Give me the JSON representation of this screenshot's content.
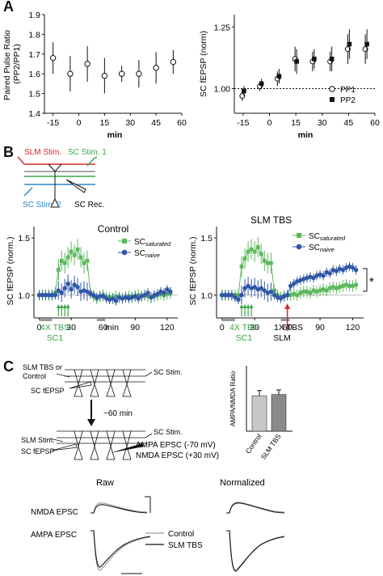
{
  "panels": {
    "a": {
      "letter": "A"
    },
    "b": {
      "letter": "B"
    },
    "c": {
      "letter": "C"
    }
  },
  "chart_data": [
    {
      "id": "ppr",
      "type": "scatter",
      "xlabel": "min",
      "ylabel_line1": "Paired Pulse Ratio",
      "ylabel_line2": "(PP2/PP1)",
      "xlim": [
        -20,
        60
      ],
      "ylim": [
        1.4,
        1.9
      ],
      "xticks": [
        "-15",
        "0",
        "15",
        "30",
        "45",
        "60"
      ],
      "yticks": [
        "1.4",
        "1.5",
        "1.6",
        "1.7",
        "1.8",
        "1.9"
      ],
      "x": [
        -15,
        -5,
        5,
        15,
        25,
        35,
        45,
        55
      ],
      "y": [
        1.68,
        1.6,
        1.65,
        1.59,
        1.6,
        1.6,
        1.63,
        1.66
      ],
      "err": [
        0.08,
        0.09,
        0.09,
        0.09,
        0.04,
        0.07,
        0.08,
        0.06
      ]
    },
    {
      "id": "fepsp",
      "type": "scatter",
      "xlabel": "min",
      "ylabel": "SC fEPSP (norm)",
      "xlim": [
        -20,
        60
      ],
      "ylim": [
        0.9,
        1.3
      ],
      "xticks": [
        "-15",
        "0",
        "15",
        "30",
        "45",
        "60"
      ],
      "yticks": [
        "1.00",
        "1.25"
      ],
      "series": [
        {
          "name": "PP1",
          "x": [
            -15,
            -5,
            5,
            15,
            25,
            35,
            45,
            55
          ],
          "y": [
            0.97,
            1.01,
            1.04,
            1.12,
            1.11,
            1.11,
            1.16,
            1.16
          ],
          "err": [
            0.02,
            0.02,
            0.03,
            0.05,
            0.04,
            0.04,
            0.06,
            0.06
          ]
        },
        {
          "name": "PP2",
          "x": [
            -15,
            -5,
            5,
            15,
            25,
            35,
            45,
            55
          ],
          "y": [
            0.99,
            1.02,
            1.05,
            1.11,
            1.12,
            1.12,
            1.18,
            1.18
          ],
          "err": [
            0.02,
            0.02,
            0.03,
            0.05,
            0.04,
            0.05,
            0.06,
            0.06
          ]
        }
      ]
    },
    {
      "id": "control",
      "type": "line",
      "title": "Control",
      "ylabel": "SC fEPSP (norm.)",
      "xlabel": "min",
      "xlim": [
        -5,
        130
      ],
      "ylim": [
        0.8,
        1.6
      ],
      "xticks": [
        "0",
        "30",
        "60",
        "90",
        "120"
      ],
      "yticks": [
        "1.0",
        "1.5"
      ],
      "series": [
        {
          "name": "SC saturated",
          "x": [
            0,
            3,
            6,
            9,
            12,
            15,
            18,
            21,
            24,
            27,
            30,
            33,
            36,
            39,
            42,
            45,
            48,
            51,
            54,
            57,
            60,
            63,
            66,
            69,
            72,
            75,
            78,
            81,
            84,
            87,
            90,
            93,
            96,
            99,
            102,
            105,
            108,
            111,
            114,
            117,
            120,
            123
          ],
          "y": [
            1.0,
            1.0,
            1.0,
            1.0,
            1.0,
            1.02,
            1.22,
            1.3,
            1.28,
            1.33,
            1.38,
            1.35,
            1.4,
            1.33,
            1.28,
            1.3,
            1.02,
            0.99,
            0.97,
            0.99,
            1.0,
            0.98,
            0.98,
            0.97,
            0.99,
            0.98,
            0.97,
            0.98,
            0.99,
            0.98,
            0.99,
            1.0,
            0.99,
            1.0,
            0.99,
            0.98,
            0.99,
            1.0,
            1.01,
            1.0,
            1.01,
            1.02
          ]
        },
        {
          "name": "SC naive",
          "x": [
            0,
            3,
            6,
            9,
            12,
            15,
            18,
            21,
            24,
            27,
            30,
            33,
            36,
            39,
            42,
            45,
            48,
            51,
            54,
            57,
            60,
            63,
            66,
            69,
            72,
            75,
            78,
            81,
            84,
            87,
            90,
            93,
            96,
            99,
            102,
            105,
            108,
            111,
            114,
            117,
            120,
            123
          ],
          "y": [
            1.0,
            1.0,
            1.0,
            1.0,
            1.0,
            1.0,
            1.04,
            1.02,
            1.06,
            1.1,
            1.05,
            1.09,
            1.07,
            1.03,
            1.04,
            1.03,
            1.01,
            1.0,
            0.98,
            0.99,
            0.99,
            0.97,
            0.96,
            0.97,
            0.95,
            0.98,
            0.97,
            0.98,
            0.97,
            0.98,
            0.99,
            0.97,
            0.99,
            1.0,
            1.02,
            0.98,
            1.0,
            1.01,
            1.03,
            1.02,
            1.05,
            1.03
          ]
        }
      ],
      "stim_label_line1": "4X TBS",
      "stim_label_line2": "SC1"
    },
    {
      "id": "slm",
      "type": "line",
      "title": "SLM TBS",
      "ylabel": "SC fEPSP (norm.)",
      "xlabel": "min",
      "xlim": [
        -5,
        130
      ],
      "ylim": [
        0.8,
        1.6
      ],
      "xticks": [
        "0",
        "30",
        "60",
        "90",
        "120"
      ],
      "yticks": [
        "1.0",
        "1.5"
      ],
      "series": [
        {
          "name": "SC saturated",
          "x": [
            0,
            3,
            6,
            9,
            12,
            15,
            18,
            21,
            24,
            27,
            30,
            33,
            36,
            39,
            42,
            45,
            48,
            51,
            54,
            57,
            60,
            63,
            66,
            69,
            72,
            75,
            78,
            81,
            84,
            87,
            90,
            93,
            96,
            99,
            102,
            105,
            108,
            111,
            114,
            117,
            120,
            123
          ],
          "y": [
            1.0,
            1.0,
            1.0,
            1.0,
            1.0,
            1.0,
            1.25,
            1.32,
            1.38,
            1.4,
            1.38,
            1.42,
            1.36,
            1.3,
            1.28,
            1.28,
            1.04,
            1.0,
            0.98,
            0.99,
            1.0,
            1.0,
            1.01,
            1.0,
            1.02,
            1.03,
            1.03,
            1.02,
            1.04,
            1.03,
            1.04,
            1.05,
            1.04,
            1.06,
            1.07,
            1.06,
            1.07,
            1.08,
            1.09,
            1.08,
            1.08,
            1.09
          ]
        },
        {
          "name": "SC naive",
          "x": [
            0,
            3,
            6,
            9,
            12,
            15,
            18,
            21,
            24,
            27,
            30,
            33,
            36,
            39,
            42,
            45,
            48,
            51,
            54,
            57,
            60,
            63,
            66,
            69,
            72,
            75,
            78,
            81,
            84,
            87,
            90,
            93,
            96,
            99,
            102,
            105,
            108,
            111,
            114,
            117,
            120,
            123
          ],
          "y": [
            1.0,
            1.0,
            1.0,
            1.0,
            0.98,
            0.96,
            1.0,
            1.06,
            1.08,
            1.06,
            1.07,
            1.05,
            1.06,
            1.04,
            1.02,
            1.03,
            1.0,
            0.98,
            0.97,
            0.99,
            1.0,
            1.08,
            1.1,
            1.12,
            1.13,
            1.14,
            1.15,
            1.16,
            1.15,
            1.17,
            1.18,
            1.17,
            1.2,
            1.19,
            1.22,
            1.21,
            1.23,
            1.22,
            1.24,
            1.25,
            1.24,
            1.22
          ]
        }
      ],
      "stim_label_line1": "4X TBS",
      "stim_label_line2": "SC1",
      "slm_label_line1": "1X TBS",
      "slm_label_line2": "SLM",
      "significance": "*"
    },
    {
      "id": "ampa-nmda",
      "type": "bar",
      "categories": [
        "Control",
        "SLM TBS"
      ],
      "values": [
        5.4,
        5.6
      ],
      "err": [
        0.8,
        0.7
      ],
      "ylabel": "AMPA/NMDA Ratio",
      "ylim": [
        0,
        10
      ],
      "bar_colors": [
        "#c8c8c8",
        "#8a8a8a"
      ]
    }
  ],
  "legend_a": {
    "pp1": "PP1",
    "pp2": "PP2"
  },
  "legend_b": {
    "saturated_prefix": "SC",
    "saturated_sub": "saturated",
    "naive_prefix": "SC",
    "naive_sub": "naive"
  },
  "diagram_b": {
    "slm_stim": "SLM Stim.",
    "sc_stim1": "SC Stim. 1",
    "sc_stim2": "SC Stim. 2",
    "sc_rec": "SC Rec."
  },
  "diagram_c": {
    "top_label_line1": "SLM TBS or",
    "top_label_line2": "Control",
    "sc_stim": "SC Stim.",
    "sc_fepsp": "SC fEPSP",
    "arrow_label": "~60 min",
    "slm_stim": "SLM Stim.",
    "sc_stim_b": "SC Stim.",
    "sc_fepsp_b": "SC fEPSP",
    "ampa": "AMPA EPSC (-70 mV)",
    "nmda": "NMDA EPSC (+30 mV)"
  },
  "traces": {
    "raw": "Raw",
    "normalized": "Normalized",
    "nmda": "NMDA EPSC",
    "ampa": "AMPA EPSC",
    "legend_control": "Control",
    "legend_slm": "SLM TBS"
  },
  "colors": {
    "saturated": "#5cb85c",
    "naive": "#2f56a6",
    "slm_red": "#d9262b",
    "sc_green": "#3aa64a",
    "sc_blue": "#2f8ac6",
    "control_trace": "#9a9a9a",
    "slm_trace": "#111111"
  }
}
